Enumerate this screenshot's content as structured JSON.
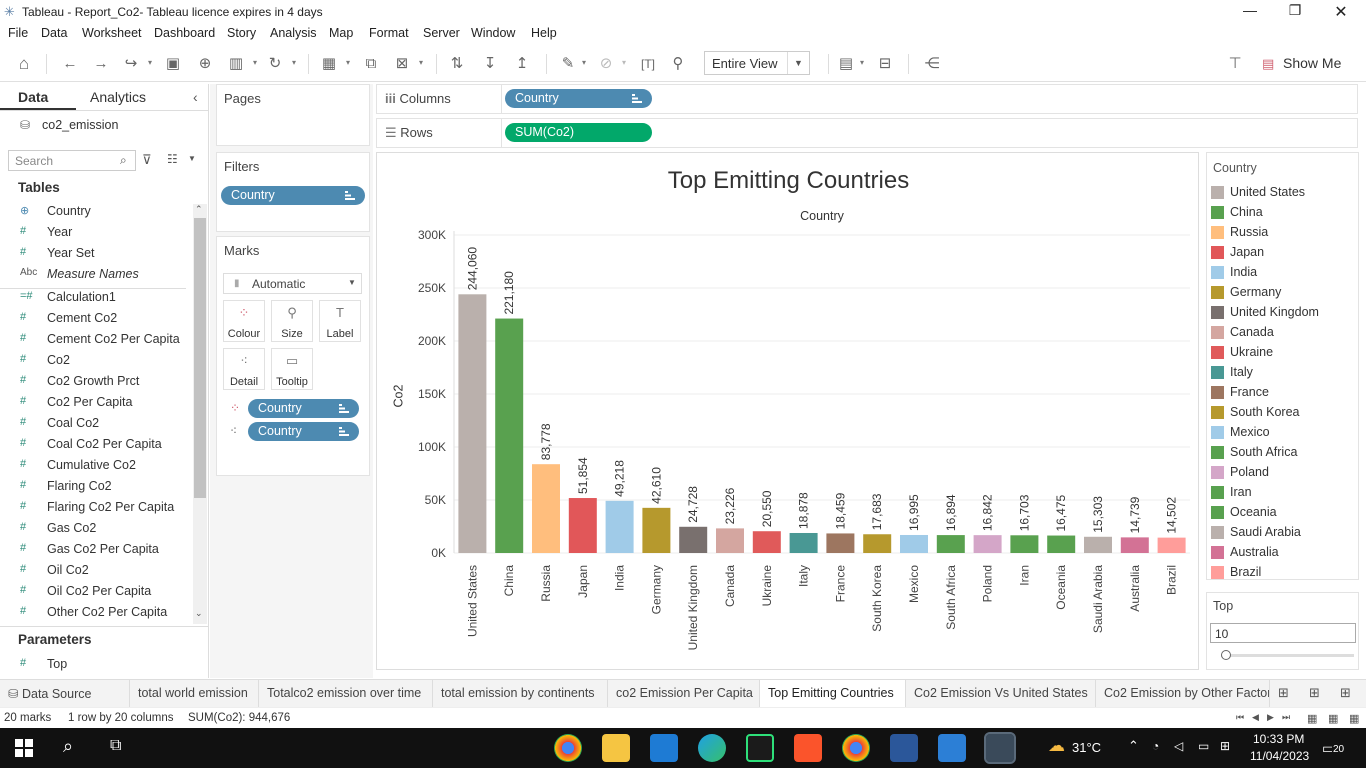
{
  "window": {
    "title": "Tableau - Report_Co2- Tableau licence expires in 4 days"
  },
  "menu": [
    "File",
    "Data",
    "Worksheet",
    "Dashboard",
    "Story",
    "Analysis",
    "Map",
    "Format",
    "Server",
    "Window",
    "Help"
  ],
  "toolbar": {
    "view_select": "Entire View",
    "show_me": "Show Me"
  },
  "left_pane": {
    "tab_data": "Data",
    "tab_analytics": "Analytics",
    "datasource": "co2_emission",
    "search_placeholder": "Search",
    "tables_header": "Tables",
    "fields": [
      {
        "icon": "globe-icon",
        "name": "Country"
      },
      {
        "icon": "hash",
        "name": "Year"
      },
      {
        "icon": "hash",
        "name": "Year Set"
      },
      {
        "icon": "abc",
        "name": "Measure Names"
      },
      {
        "icon": "calc",
        "name": "Calculation1"
      },
      {
        "icon": "hash",
        "name": "Cement Co2"
      },
      {
        "icon": "hash",
        "name": "Cement Co2 Per Capita"
      },
      {
        "icon": "hash",
        "name": "Co2"
      },
      {
        "icon": "hash",
        "name": "Co2 Growth Prct"
      },
      {
        "icon": "hash",
        "name": "Co2 Per Capita"
      },
      {
        "icon": "hash",
        "name": "Coal Co2"
      },
      {
        "icon": "hash",
        "name": "Coal Co2 Per Capita"
      },
      {
        "icon": "hash",
        "name": "Cumulative Co2"
      },
      {
        "icon": "hash",
        "name": "Flaring Co2"
      },
      {
        "icon": "hash",
        "name": "Flaring Co2 Per Capita"
      },
      {
        "icon": "hash",
        "name": "Gas Co2"
      },
      {
        "icon": "hash",
        "name": "Gas Co2 Per Capita"
      },
      {
        "icon": "hash",
        "name": "Oil Co2"
      },
      {
        "icon": "hash",
        "name": "Oil Co2 Per Capita"
      },
      {
        "icon": "hash",
        "name": "Other Co2 Per Capita"
      }
    ],
    "parameters_header": "Parameters",
    "parameters": [
      {
        "icon": "hash",
        "name": "Top"
      }
    ]
  },
  "cards": {
    "pages": "Pages",
    "filters": "Filters",
    "filter_pill": "Country",
    "marks": "Marks",
    "marks_type": "Automatic",
    "mark_buttons": [
      "Colour",
      "Size",
      "Label",
      "Detail",
      "Tooltip"
    ],
    "mark_pills": [
      "Country",
      "Country"
    ]
  },
  "shelves": {
    "columns_label": "Columns",
    "columns_pill": "Country",
    "rows_label": "Rows",
    "rows_pill": "SUM(Co2)"
  },
  "chart_data": {
    "type": "bar",
    "title": "Top Emitting Countries",
    "subtitle": "Country",
    "ylabel": "Co2",
    "xlabel": "",
    "ylim": [
      0,
      300000
    ],
    "yticks": [
      "0K",
      "50K",
      "100K",
      "150K",
      "200K",
      "250K",
      "300K"
    ],
    "categories": [
      "United States",
      "China",
      "Russia",
      "Japan",
      "India",
      "Germany",
      "United Kingdom",
      "Canada",
      "Ukraine",
      "Italy",
      "France",
      "South Korea",
      "Mexico",
      "South Africa",
      "Poland",
      "Iran",
      "Oceania",
      "Saudi Arabia",
      "Australia",
      "Brazil"
    ],
    "values": [
      244060,
      221180,
      83778,
      51854,
      49218,
      42610,
      24728,
      23226,
      20550,
      18878,
      18459,
      17683,
      16995,
      16894,
      16842,
      16703,
      16475,
      15303,
      14739,
      14502
    ],
    "labels": [
      "244,060",
      "221,180",
      "83,778",
      "51,854",
      "49,218",
      "42,610",
      "24,728",
      "23,226",
      "20,550",
      "18,878",
      "18,459",
      "17,683",
      "16,995",
      "16,894",
      "16,842",
      "16,703",
      "16,475",
      "15,303",
      "14,739",
      "14,502"
    ],
    "colors": [
      "#bab0ac",
      "#59a14f",
      "#ffbe7d",
      "#e15759",
      "#a0cbe8",
      "#b6992d",
      "#79706e",
      "#d4a6a0",
      "#e05a5a",
      "#499894",
      "#9d7660",
      "#b6992d",
      "#a0cbe8",
      "#59a14f",
      "#d4a6c8",
      "#59a14f",
      "#59a14f",
      "#bab0ac",
      "#d37295",
      "#ff9d9a"
    ],
    "grid": true
  },
  "legend": {
    "title": "Country",
    "items": [
      {
        "name": "United States",
        "color": "#bab0ac"
      },
      {
        "name": "China",
        "color": "#59a14f"
      },
      {
        "name": "Russia",
        "color": "#ffbe7d"
      },
      {
        "name": "Japan",
        "color": "#e15759"
      },
      {
        "name": "India",
        "color": "#a0cbe8"
      },
      {
        "name": "Germany",
        "color": "#b6992d"
      },
      {
        "name": "United Kingdom",
        "color": "#79706e"
      },
      {
        "name": "Canada",
        "color": "#d4a6a0"
      },
      {
        "name": "Ukraine",
        "color": "#e05a5a"
      },
      {
        "name": "Italy",
        "color": "#499894"
      },
      {
        "name": "France",
        "color": "#9d7660"
      },
      {
        "name": "South Korea",
        "color": "#b6992d"
      },
      {
        "name": "Mexico",
        "color": "#a0cbe8"
      },
      {
        "name": "South Africa",
        "color": "#59a14f"
      },
      {
        "name": "Poland",
        "color": "#d4a6c8"
      },
      {
        "name": "Iran",
        "color": "#59a14f"
      },
      {
        "name": "Oceania",
        "color": "#59a14f"
      },
      {
        "name": "Saudi Arabia",
        "color": "#bab0ac"
      },
      {
        "name": "Australia",
        "color": "#d37295"
      },
      {
        "name": "Brazil",
        "color": "#ff9d9a"
      }
    ]
  },
  "top_param": {
    "title": "Top",
    "value": "10"
  },
  "sheet_tabs": [
    {
      "label": "Data Source"
    },
    {
      "label": "total world emission"
    },
    {
      "label": "Totalco2 emission over time"
    },
    {
      "label": "total emission by continents"
    },
    {
      "label": "co2 Emission Per Capita"
    },
    {
      "label": "Top Emitting Countries",
      "active": true
    },
    {
      "label": "Co2 Emission Vs United States"
    },
    {
      "label": "Co2 Emission by Other Factor"
    }
  ],
  "status": {
    "marks": "20 marks",
    "dims": "1 row by 20 columns",
    "sum": "SUM(Co2): 944,676"
  },
  "taskbar": {
    "weather": "31°C",
    "time": "10:33 PM",
    "date": "11/04/2023",
    "notifications": "20"
  }
}
